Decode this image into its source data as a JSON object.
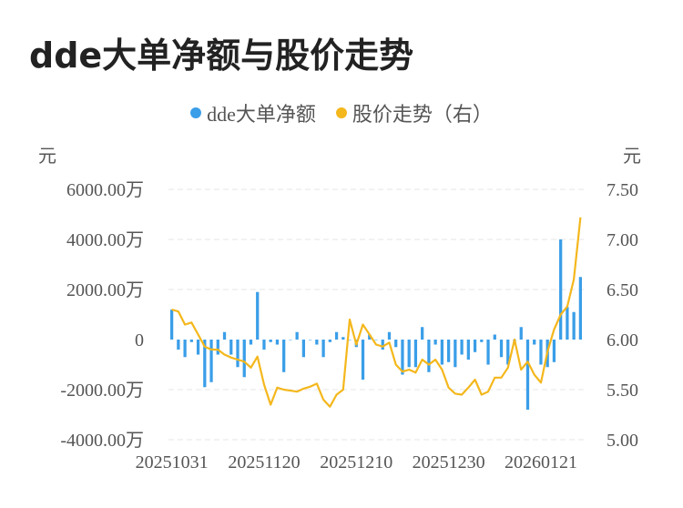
{
  "title": "dde大单净额与股价走势",
  "legend": {
    "items": [
      {
        "label": "dde大单净额",
        "color": "#3a9ee8"
      },
      {
        "label": "股价走势（右）",
        "color": "#f4b71c"
      }
    ]
  },
  "colors": {
    "bar": "#3a9ee8",
    "line": "#f4b71c",
    "grid": "#e6e6e6"
  },
  "chart_data": {
    "type": "bar+line",
    "title": "dde大单净额与股价走势",
    "y_left_unit": "元",
    "y_right_unit": "元",
    "y_left_ticks": [
      "6000.00万",
      "4000.00万",
      "2000.00万",
      "0",
      "-2000.00万",
      "-4000.00万"
    ],
    "y_left_tick_values": [
      6000,
      4000,
      2000,
      0,
      -2000,
      -4000
    ],
    "y_right_ticks": [
      "7.50",
      "7.00",
      "6.50",
      "6.00",
      "5.50",
      "5.00"
    ],
    "y_right_tick_values": [
      7.5,
      7.0,
      6.5,
      6.0,
      5.5,
      5.0
    ],
    "ylim_left": [
      -4000,
      6000
    ],
    "ylim_right": [
      5.0,
      7.5
    ],
    "x_tick_labels": [
      "20251031",
      "20251120",
      "20251210",
      "20251230",
      "20260121"
    ],
    "x_tick_indices": [
      0,
      14,
      28,
      42,
      56
    ],
    "series": [
      {
        "name": "dde大单净额",
        "type": "bar",
        "axis": "left",
        "values": [
          1200,
          -400,
          -700,
          -100,
          -600,
          -1900,
          -1700,
          -600,
          300,
          -600,
          -1100,
          -1500,
          -200,
          1900,
          -400,
          -100,
          -200,
          -1300,
          0,
          300,
          -700,
          0,
          -200,
          -700,
          -100,
          300,
          100,
          0,
          -300,
          -1600,
          200,
          0,
          -400,
          300,
          -300,
          -1400,
          -1100,
          -1100,
          500,
          -1300,
          -200,
          -1000,
          -900,
          -1100,
          -600,
          -800,
          -500,
          -100,
          -1000,
          200,
          -700,
          -1000,
          -200,
          500,
          -2800,
          -200,
          -1000,
          -1100,
          -900,
          4000,
          1300,
          1100,
          2500
        ]
      },
      {
        "name": "股价走势（右）",
        "type": "line",
        "axis": "right",
        "values": [
          6.3,
          6.28,
          6.15,
          6.17,
          6.05,
          5.93,
          5.9,
          5.9,
          5.85,
          5.82,
          5.8,
          5.78,
          5.72,
          5.83,
          5.55,
          5.35,
          5.52,
          5.5,
          5.49,
          5.48,
          5.51,
          5.53,
          5.56,
          5.4,
          5.33,
          5.45,
          5.5,
          6.2,
          5.95,
          6.15,
          6.05,
          5.95,
          5.93,
          5.97,
          5.75,
          5.68,
          5.7,
          5.67,
          5.8,
          5.75,
          5.8,
          5.7,
          5.52,
          5.46,
          5.45,
          5.52,
          5.6,
          5.45,
          5.48,
          5.62,
          5.62,
          5.72,
          6.0,
          5.7,
          5.78,
          5.65,
          5.57,
          5.88,
          6.1,
          6.25,
          6.33,
          6.6,
          7.22
        ]
      }
    ]
  }
}
